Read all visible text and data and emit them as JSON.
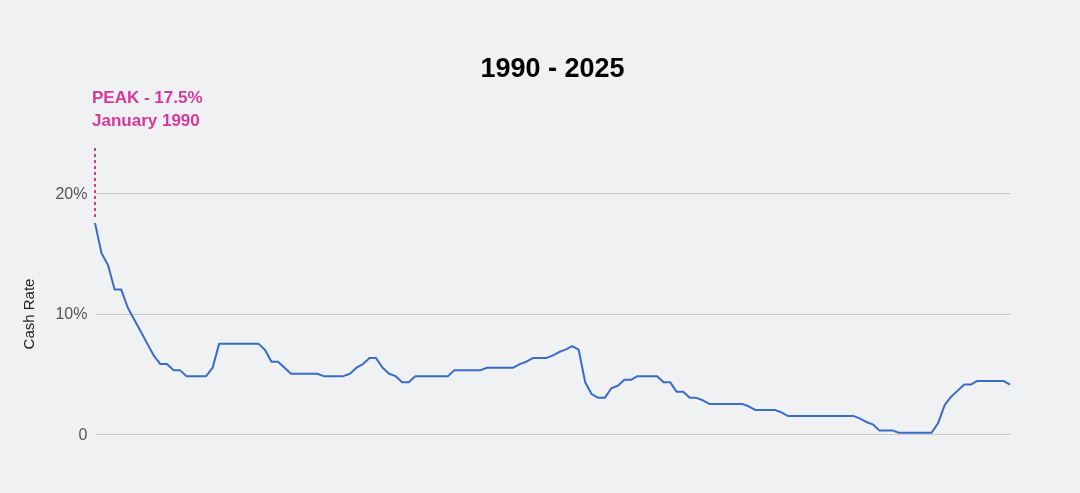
{
  "chart_data": {
    "type": "line",
    "title": "1990 - 2025",
    "ylabel": "Cash Rate",
    "categories": [
      null,
      null,
      null,
      null,
      null,
      null,
      null,
      null,
      null,
      null,
      null,
      null,
      null,
      null,
      null,
      null,
      null,
      null,
      null,
      null,
      null,
      null,
      null,
      null,
      null,
      null,
      null,
      null,
      null,
      null,
      null,
      null,
      null,
      null,
      null,
      null,
      null,
      null,
      null,
      null,
      null,
      null,
      null,
      null,
      null,
      null,
      null,
      null,
      null,
      null,
      null,
      null,
      null,
      null,
      null,
      null,
      null,
      null,
      null,
      null,
      null,
      null,
      null,
      null,
      null,
      null,
      null,
      null,
      null,
      null,
      null,
      null,
      null,
      null,
      null,
      null,
      null,
      null,
      null,
      null,
      null,
      null,
      null,
      null,
      null,
      null,
      null,
      null,
      null,
      null,
      null,
      null,
      null,
      null,
      null,
      null,
      null,
      null,
      null,
      null,
      null,
      null,
      null,
      null,
      null,
      null,
      null,
      null,
      null,
      null,
      null,
      null,
      null,
      null,
      null,
      null,
      null,
      null,
      null,
      null,
      null,
      null,
      null,
      null,
      null,
      null,
      null,
      null,
      null,
      null,
      null,
      null,
      null,
      null,
      null,
      null,
      null,
      null,
      null,
      null,
      null
    ],
    "series": [
      {
        "color": "#3a6bc9",
        "values": [
          17.5,
          15.0,
          14.0,
          12.0,
          12.0,
          10.5,
          9.5,
          8.5,
          7.5,
          6.5,
          5.8,
          5.8,
          5.3,
          5.3,
          4.8,
          4.8,
          4.8,
          4.8,
          5.5,
          7.5,
          7.5,
          7.5,
          7.5,
          7.5,
          7.5,
          7.5,
          7.0,
          6.0,
          6.0,
          5.5,
          5.0,
          5.0,
          5.0,
          5.0,
          5.0,
          4.8,
          4.8,
          4.8,
          4.8,
          5.0,
          5.5,
          5.8,
          6.3,
          6.3,
          5.5,
          5.0,
          4.8,
          4.3,
          4.3,
          4.8,
          4.8,
          4.8,
          4.8,
          4.8,
          4.8,
          5.3,
          5.3,
          5.3,
          5.3,
          5.3,
          5.5,
          5.5,
          5.5,
          5.5,
          5.5,
          5.8,
          6.0,
          6.3,
          6.3,
          6.3,
          6.5,
          6.8,
          7.0,
          7.3,
          7.0,
          4.3,
          3.3,
          3.0,
          3.0,
          3.8,
          4.0,
          4.5,
          4.5,
          4.8,
          4.8,
          4.8,
          4.8,
          4.3,
          4.3,
          3.5,
          3.5,
          3.0,
          3.0,
          2.8,
          2.5,
          2.5,
          2.5,
          2.5,
          2.5,
          2.5,
          2.3,
          2.0,
          2.0,
          2.0,
          2.0,
          1.8,
          1.5,
          1.5,
          1.5,
          1.5,
          1.5,
          1.5,
          1.5,
          1.5,
          1.5,
          1.5,
          1.5,
          1.3,
          1.0,
          0.8,
          0.3,
          0.3,
          0.3,
          0.1,
          0.1,
          0.1,
          0.1,
          0.1,
          0.1,
          0.9,
          2.4,
          3.1,
          3.6,
          4.1,
          4.1,
          4.4,
          4.4,
          4.4,
          4.4,
          4.4,
          4.1
        ]
      }
    ],
    "ylim": [
      0,
      20
    ],
    "yticks": [
      0,
      {
        "value": 10,
        "label": "10%"
      },
      {
        "value": 20,
        "label": "20%"
      }
    ],
    "grid": "y",
    "tick_labels": "y",
    "annotations": [
      "PEAK - 17.5%",
      "January 1990"
    ]
  }
}
